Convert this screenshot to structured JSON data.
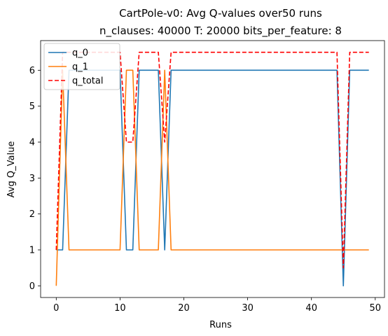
{
  "chart_data": {
    "type": "line",
    "title": "CartPole-v0: Avg Q-values over50 runs",
    "subtitle": "n_clauses: 40000 T: 20000 bits_per_feature: 8",
    "xlabel": "Runs",
    "ylabel": "Avg Q_Value",
    "xlim": [
      -2.45,
      51.45
    ],
    "ylim": [
      -0.325,
      6.825
    ],
    "xticks": [
      0,
      10,
      20,
      30,
      40,
      50
    ],
    "yticks": [
      0,
      1,
      2,
      3,
      4,
      5,
      6
    ],
    "legend_position": "top-left",
    "x": [
      0,
      1,
      2,
      3,
      4,
      5,
      6,
      7,
      8,
      9,
      10,
      11,
      12,
      13,
      14,
      15,
      16,
      17,
      18,
      19,
      20,
      21,
      22,
      23,
      24,
      25,
      26,
      27,
      28,
      29,
      30,
      31,
      32,
      33,
      34,
      35,
      36,
      37,
      38,
      39,
      40,
      41,
      42,
      43,
      44,
      45,
      46,
      47,
      48,
      49
    ],
    "series": [
      {
        "name": "q_0",
        "color": "#1f77b4",
        "style": "solid",
        "values": [
          1,
          1,
          6,
          6,
          6,
          6,
          6,
          6,
          6,
          6,
          6,
          1,
          1,
          6,
          6,
          6,
          6,
          1,
          6,
          6,
          6,
          6,
          6,
          6,
          6,
          6,
          6,
          6,
          6,
          6,
          6,
          6,
          6,
          6,
          6,
          6,
          6,
          6,
          6,
          6,
          6,
          6,
          6,
          6,
          6,
          0,
          6,
          6,
          6,
          6
        ]
      },
      {
        "name": "q_1",
        "color": "#ff7f0e",
        "style": "solid",
        "values": [
          0,
          6,
          1,
          1,
          1,
          1,
          1,
          1,
          1,
          1,
          1,
          6,
          6,
          1,
          1,
          1,
          1,
          6,
          1,
          1,
          1,
          1,
          1,
          1,
          1,
          1,
          1,
          1,
          1,
          1,
          1,
          1,
          1,
          1,
          1,
          1,
          1,
          1,
          1,
          1,
          1,
          1,
          1,
          1,
          1,
          1,
          1,
          1,
          1,
          1
        ]
      },
      {
        "name": "q_total",
        "color": "#ff0000",
        "style": "dashed",
        "values": [
          1,
          6.5,
          6.5,
          6.5,
          6.5,
          6.5,
          6.5,
          6.5,
          6.5,
          6.5,
          6.5,
          4,
          4,
          6.5,
          6.5,
          6.5,
          6.5,
          4,
          6.5,
          6.5,
          6.5,
          6.5,
          6.5,
          6.5,
          6.5,
          6.5,
          6.5,
          6.5,
          6.5,
          6.5,
          6.5,
          6.5,
          6.5,
          6.5,
          6.5,
          6.5,
          6.5,
          6.5,
          6.5,
          6.5,
          6.5,
          6.5,
          6.5,
          6.5,
          6.5,
          0.5,
          6.5,
          6.5,
          6.5,
          6.5
        ]
      }
    ]
  }
}
